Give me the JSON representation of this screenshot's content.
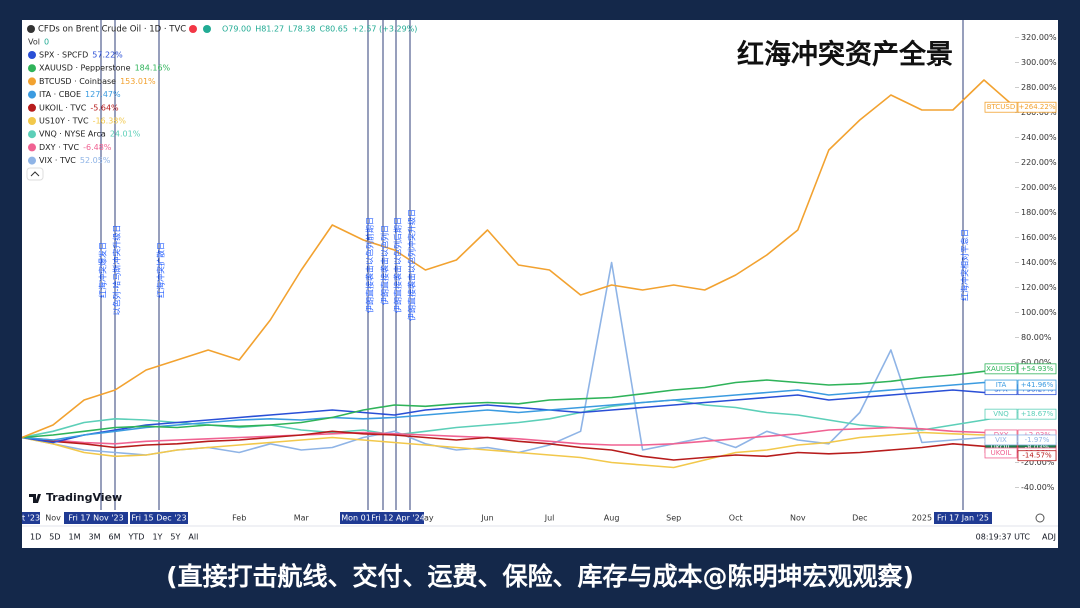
{
  "chart_data": {
    "type": "line",
    "title": "红海冲突资产全景",
    "caption": "(直接打击航线、交付、运费、保险、库存与成本@陈明坤宏观观察)",
    "header": {
      "symbol": "CFDs on Brent Crude Oil · 1D · TVC",
      "ohlc": [
        "O79.00",
        "H81.27",
        "L78.38",
        "C80.65",
        "+2.57 (+3.29%)"
      ],
      "volume_label": "Vol",
      "volume_value": "0"
    },
    "categories": [
      null,
      "Nov",
      null,
      "Dec",
      null,
      "2024",
      null,
      "Feb",
      null,
      "Mar",
      null,
      "Apr",
      null,
      "May",
      null,
      "Jun",
      null,
      "Jul",
      null,
      "Aug",
      null,
      "Sep",
      null,
      "Oct",
      null,
      "Nov",
      null,
      "Dec",
      null,
      "2025",
      null,
      "Feb",
      null
    ],
    "series": [
      {
        "name": "SPX · SPCFD",
        "ticker": "SPX",
        "color": "#2a4fd6",
        "legend_value": "57.22%",
        "end_label": "+38.27%",
        "values": [
          0,
          -4,
          2,
          6,
          10,
          12,
          14,
          16,
          18,
          20,
          22,
          20,
          18,
          22,
          24,
          26,
          24,
          22,
          20,
          22,
          24,
          26,
          28,
          30,
          32,
          34,
          30,
          32,
          34,
          36,
          38,
          36,
          38.27
        ]
      },
      {
        "name": "XAUUSD · Pepperstone",
        "ticker": "XAUUSD",
        "color": "#2fb35a",
        "legend_value": "184.16%",
        "end_label": "+54.93%",
        "values": [
          0,
          2,
          5,
          8,
          9,
          8,
          10,
          9,
          10,
          12,
          16,
          22,
          26,
          25,
          27,
          28,
          27,
          30,
          31,
          32,
          35,
          38,
          40,
          44,
          46,
          44,
          42,
          43,
          45,
          48,
          50,
          53,
          54.93
        ]
      },
      {
        "name": "BTCUSD · Coinbase",
        "ticker": "BTCUSD",
        "color": "#f2a230",
        "legend_value": "153.01%",
        "end_label": "+264.22%",
        "values": [
          0,
          10,
          30,
          38,
          54,
          62,
          70,
          62,
          94,
          134,
          170,
          158,
          150,
          134,
          142,
          166,
          138,
          134,
          114,
          122,
          118,
          122,
          118,
          130,
          146,
          166,
          230,
          254,
          274,
          262,
          262,
          286,
          264.22
        ]
      },
      {
        "name": "ITA · CBOE",
        "ticker": "ITA",
        "color": "#3b9be0",
        "legend_value": "127.47%",
        "end_label": "+41.96%",
        "values": [
          0,
          -2,
          2,
          5,
          8,
          10,
          12,
          14,
          15,
          14,
          16,
          15,
          16,
          18,
          20,
          22,
          20,
          22,
          24,
          26,
          28,
          30,
          32,
          34,
          36,
          38,
          34,
          36,
          38,
          40,
          42,
          44,
          41.96
        ]
      },
      {
        "name": "UKOIL · TVC",
        "ticker": "UKOIL",
        "color": "#b71c1c",
        "legend_value": "-5.64%",
        "end_label": "-8.03%",
        "countdown": "14:40:21",
        "values": [
          0,
          -3,
          -5,
          -8,
          -6,
          -5,
          -3,
          -2,
          0,
          2,
          5,
          3,
          2,
          0,
          -2,
          0,
          -3,
          -5,
          -8,
          -10,
          -15,
          -18,
          -16,
          -14,
          -15,
          -12,
          -13,
          -12,
          -10,
          -8,
          -5,
          -7,
          -8.03
        ]
      },
      {
        "name": "US10Y · TVC",
        "ticker": "US10Y",
        "color": "#f2c84b",
        "legend_value": "-16.38%",
        "end_label": "+1.43%",
        "values": [
          0,
          -5,
          -12,
          -15,
          -14,
          -10,
          -8,
          -6,
          -4,
          -2,
          0,
          -2,
          -4,
          -6,
          -8,
          -10,
          -12,
          -14,
          -16,
          -20,
          -22,
          -24,
          -18,
          -12,
          -10,
          -6,
          -4,
          0,
          2,
          4,
          3,
          2,
          1.43
        ]
      },
      {
        "name": "VNQ · NYSE Arca",
        "ticker": "VNQ",
        "color": "#5ccfb8",
        "legend_value": "24.01%",
        "end_label": "+18.67%",
        "values": [
          0,
          5,
          12,
          15,
          14,
          12,
          10,
          8,
          10,
          6,
          4,
          6,
          2,
          5,
          8,
          10,
          12,
          15,
          20,
          25,
          28,
          30,
          26,
          24,
          20,
          18,
          14,
          10,
          8,
          6,
          10,
          14,
          18.67
        ]
      },
      {
        "name": "DXY · TVC",
        "ticker": "DXY",
        "color": "#f06292",
        "legend_value": "-6.48%",
        "end_label": "+2.03%",
        "values": [
          0,
          -2,
          -4,
          -5,
          -3,
          -2,
          -1,
          0,
          1,
          2,
          3,
          4,
          3,
          2,
          1,
          0,
          -1,
          -3,
          -5,
          -6,
          -6,
          -5,
          -3,
          -1,
          1,
          3,
          6,
          7,
          8,
          7,
          5,
          4,
          2.03
        ]
      },
      {
        "name": "VIX · TVC",
        "ticker": "VIX",
        "color": "#8fb4e6",
        "legend_value": "52.05%",
        "end_label": "-1.97%",
        "values": [
          0,
          -5,
          -10,
          -12,
          -14,
          -10,
          -8,
          -12,
          -5,
          -10,
          -8,
          0,
          5,
          -5,
          -10,
          -8,
          -12,
          -6,
          5,
          140,
          -10,
          -5,
          0,
          -8,
          5,
          -2,
          -5,
          20,
          70,
          -4,
          -2,
          0,
          -1.97
        ]
      }
    ],
    "price_labels": [
      {
        "name": "UKOIL",
        "value": -12.36,
        "label": "-12.36%",
        "color": "#f06292"
      },
      {
        "value": -14.57,
        "label": "-14.57%",
        "color": "#b71c1c"
      }
    ],
    "ylim": [
      -58,
      334
    ],
    "yticks": [
      {
        "value": -40,
        "label": "-40.00%"
      },
      {
        "value": -20,
        "label": "-20.00%"
      },
      {
        "value": 0,
        "label": "0.00%"
      },
      {
        "value": 20,
        "label": "20.00%"
      },
      {
        "value": 40,
        "label": "40.00%"
      },
      {
        "value": 60,
        "label": "60.00%"
      },
      {
        "value": 80,
        "label": "80.00%"
      },
      {
        "value": 100,
        "label": "100.00%"
      },
      {
        "value": 120,
        "label": "120.00%"
      },
      {
        "value": 140,
        "label": "140.00%"
      },
      {
        "value": 160,
        "label": "160.00%"
      },
      {
        "value": 180,
        "label": "180.00%"
      },
      {
        "value": 200,
        "label": "200.00%"
      },
      {
        "value": 220,
        "label": "220.00%"
      },
      {
        "value": 240,
        "label": "240.00%"
      },
      {
        "value": 260,
        "label": "260.00%"
      },
      {
        "value": 280,
        "label": "280.00%"
      },
      {
        "value": 300,
        "label": "300.00%"
      },
      {
        "value": 320,
        "label": "320.00%"
      }
    ],
    "grid": false,
    "annotations": [
      "红海冲突爆发日",
      "以色列-哈马斯冲突升级日",
      "红海冲突扩散日",
      "伊朗直接袭击以色列前期日",
      "伊朗直接袭击以色列日",
      "伊朗直接袭击以色列后期日",
      "伊朗直接袭击以色列冲突升级日",
      "红海冲突相对平息日"
    ],
    "x_markers": [
      "t '23",
      "Fri 17 Nov '23",
      "Fri 15 Dec '23",
      "Mon 01",
      "Fri 12 Apr '24",
      "Fri 17 Jan '25"
    ],
    "logo": "TradingView",
    "ranges": [
      "1D",
      "5D",
      "1M",
      "3M",
      "6M",
      "YTD",
      "1Y",
      "5Y",
      "All"
    ],
    "clock": "08:19:37 UTC",
    "adjust": "ADJ"
  }
}
